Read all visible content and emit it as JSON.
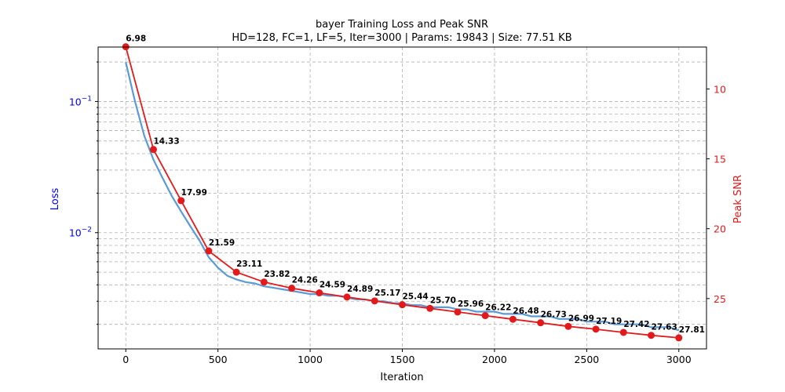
{
  "chart_data": {
    "type": "line",
    "title": "bayer Training Loss and Peak SNR",
    "subtitle": "HD=128, FC=1, LF=5, Iter=3000 | Params: 19843 | Size: 77.51 KB",
    "xlabel": "Iteration",
    "ylabel_left": "Loss",
    "ylabel_right": "Peak SNR",
    "x_ticks": [
      0,
      500,
      1000,
      1500,
      2000,
      2500,
      3000
    ],
    "xlim": [
      -150,
      3150
    ],
    "ylim_left_log": [
      0.0013,
      0.26
    ],
    "y_left_scale": "log",
    "y_left_major_ticks": [
      {
        "value": 0.1,
        "label_base": "10",
        "label_exp": "−1"
      },
      {
        "value": 0.01,
        "label_base": "10",
        "label_exp": "−2"
      }
    ],
    "y_left_minor_ticks": [
      0.002,
      0.003,
      0.004,
      0.005,
      0.006,
      0.007,
      0.008,
      0.009,
      0.02,
      0.03,
      0.04,
      0.05,
      0.06,
      0.07,
      0.08,
      0.09,
      0.2
    ],
    "ylim_right": [
      7.0,
      28.6
    ],
    "y_right_inverted": true,
    "y_right_ticks": [
      10,
      15,
      20,
      25
    ],
    "grid": true,
    "series": [
      {
        "axis": "left",
        "style": "line",
        "color": "#5b9bd5",
        "x": [
          0,
          50,
          100,
          150,
          200,
          250,
          300,
          350,
          400,
          450,
          500,
          550,
          600,
          650,
          700,
          750,
          800,
          850,
          900,
          950,
          1000,
          1050,
          1100,
          1150,
          1200,
          1250,
          1300,
          1350,
          1400,
          1450,
          1500,
          1550,
          1600,
          1650,
          1700,
          1750,
          1800,
          1850,
          1900,
          1950,
          2000,
          2050,
          2100,
          2150,
          2200,
          2250,
          2300,
          2350,
          2400,
          2450,
          2500,
          2550,
          2600,
          2650,
          2700,
          2750,
          2800,
          2850,
          2900,
          2950,
          3000
        ],
        "y": [
          0.2,
          0.1,
          0.055,
          0.036,
          0.026,
          0.019,
          0.0145,
          0.0112,
          0.0087,
          0.0065,
          0.0054,
          0.0047,
          0.0044,
          0.0042,
          0.0041,
          0.0039,
          0.0038,
          0.0037,
          0.0036,
          0.0035,
          0.0034,
          0.0034,
          0.0033,
          0.0033,
          0.0032,
          0.0031,
          0.0031,
          0.003,
          0.003,
          0.0029,
          0.0029,
          0.0028,
          0.0028,
          0.0027,
          0.0027,
          0.0027,
          0.0026,
          0.0026,
          0.0025,
          0.0025,
          0.0025,
          0.0024,
          0.0024,
          0.0024,
          0.0023,
          0.0023,
          0.0023,
          0.0022,
          0.0022,
          0.0022,
          0.0021,
          0.0021,
          0.0021,
          0.002,
          0.002,
          0.002,
          0.002,
          0.0019,
          0.0019,
          0.0019,
          0.0018
        ]
      },
      {
        "axis": "right",
        "style": "line-markers",
        "color": "#e31a1c",
        "x": [
          0,
          150,
          300,
          450,
          600,
          750,
          900,
          1050,
          1200,
          1350,
          1500,
          1650,
          1800,
          1950,
          2100,
          2250,
          2400,
          2550,
          2700,
          2850,
          3000
        ],
        "y": [
          6.98,
          14.33,
          17.99,
          21.59,
          23.11,
          23.82,
          24.26,
          24.59,
          24.89,
          25.17,
          25.44,
          25.7,
          25.96,
          26.22,
          26.48,
          26.73,
          26.99,
          27.19,
          27.42,
          27.63,
          27.81
        ],
        "labels": [
          "6.98",
          "14.33",
          "17.99",
          "21.59",
          "23.11",
          "23.82",
          "24.26",
          "24.59",
          "24.89",
          "25.17",
          "25.44",
          "25.70",
          "25.96",
          "26.22",
          "26.48",
          "26.73",
          "26.99",
          "27.19",
          "27.42",
          "27.63",
          "27.81"
        ]
      }
    ]
  }
}
